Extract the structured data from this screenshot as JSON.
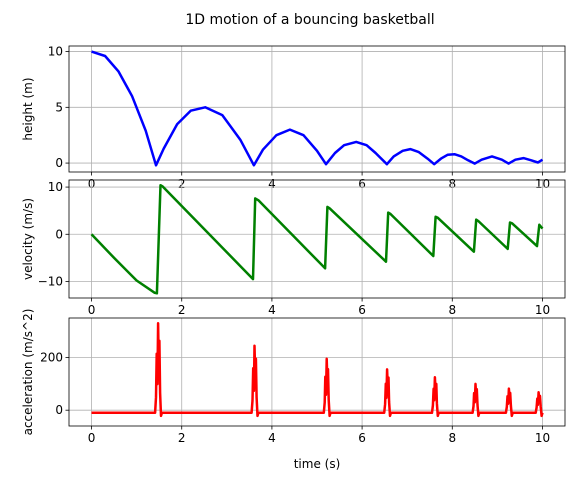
{
  "chart_data": {
    "title": "1D motion of a bouncing basketball",
    "xlabel": "time (s)",
    "x_ticks": [
      0,
      2,
      4,
      6,
      8,
      10
    ],
    "xlim": [
      -0.5,
      10.5
    ],
    "grid": true,
    "bounce_times": [
      1.43,
      3.6,
      5.2,
      6.55,
      7.6,
      8.5,
      9.25,
      9.9
    ],
    "panels": [
      {
        "id": "height",
        "type": "line",
        "ylabel": "height (m)",
        "ylim": [
          -0.8,
          10.5
        ],
        "y_ticks": [
          0,
          5,
          10
        ],
        "color": "#0000ff",
        "x": [
          0.0,
          0.3,
          0.6,
          0.9,
          1.2,
          1.43,
          1.6,
          1.9,
          2.2,
          2.52,
          2.9,
          3.3,
          3.6,
          3.8,
          4.1,
          4.4,
          4.7,
          5.0,
          5.2,
          5.4,
          5.6,
          5.87,
          6.1,
          6.3,
          6.55,
          6.7,
          6.9,
          7.07,
          7.25,
          7.45,
          7.6,
          7.75,
          7.9,
          8.05,
          8.2,
          8.35,
          8.5,
          8.65,
          8.88,
          9.1,
          9.25,
          9.4,
          9.58,
          9.75,
          9.9,
          10.0
        ],
        "y": [
          10.0,
          9.6,
          8.2,
          6.0,
          2.9,
          -0.2,
          1.3,
          3.5,
          4.7,
          5.0,
          4.3,
          2.1,
          -0.2,
          1.2,
          2.5,
          3.0,
          2.5,
          1.1,
          -0.1,
          0.9,
          1.6,
          1.9,
          1.6,
          0.9,
          -0.1,
          0.6,
          1.1,
          1.25,
          1.0,
          0.4,
          -0.1,
          0.4,
          0.75,
          0.8,
          0.6,
          0.25,
          -0.05,
          0.3,
          0.6,
          0.3,
          -0.05,
          0.3,
          0.45,
          0.25,
          0.05,
          0.3
        ]
      },
      {
        "id": "velocity",
        "type": "line",
        "ylabel": "velocity (m/s)",
        "ylim": [
          -13.5,
          11.5
        ],
        "y_ticks": [
          -10,
          0,
          10
        ],
        "color": "#008000",
        "x": [
          0.0,
          0.5,
          1.0,
          1.4,
          1.45,
          1.53,
          1.58,
          3.58,
          3.63,
          3.7,
          5.18,
          5.23,
          5.28,
          6.53,
          6.58,
          6.63,
          7.58,
          7.63,
          7.68,
          8.48,
          8.53,
          8.58,
          9.23,
          9.28,
          9.33,
          9.88,
          9.93,
          10.0
        ],
        "y": [
          0.0,
          -5.0,
          -9.8,
          -12.4,
          -12.5,
          10.4,
          10.1,
          -9.5,
          7.6,
          7.2,
          -7.2,
          5.8,
          5.5,
          -5.8,
          4.6,
          4.3,
          -4.6,
          3.7,
          3.5,
          -3.7,
          3.1,
          2.8,
          -3.1,
          2.5,
          2.3,
          -2.5,
          2.0,
          1.2
        ]
      },
      {
        "id": "acceleration",
        "type": "line",
        "ylabel": "acceleration (m/s^2)",
        "ylim": [
          -60,
          350
        ],
        "y_ticks": [
          0,
          200
        ],
        "color": "#ff0000",
        "baseline": -9.8,
        "spikes": [
          {
            "t": 1.48,
            "peak": 330
          },
          {
            "t": 3.62,
            "peak": 245
          },
          {
            "t": 5.22,
            "peak": 195
          },
          {
            "t": 6.56,
            "peak": 155
          },
          {
            "t": 7.62,
            "peak": 125
          },
          {
            "t": 8.52,
            "peak": 100
          },
          {
            "t": 9.26,
            "peak": 82
          },
          {
            "t": 9.92,
            "peak": 68
          }
        ]
      }
    ]
  }
}
